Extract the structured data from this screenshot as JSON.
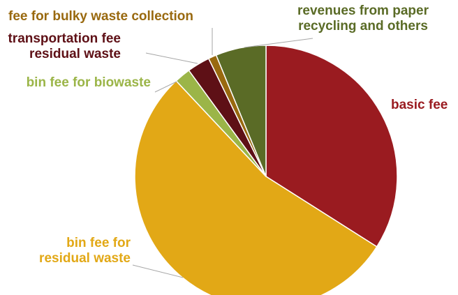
{
  "chart_data": {
    "type": "pie",
    "title": "",
    "slices": [
      {
        "label_lines": [
          "basic fee"
        ],
        "value": 34.0,
        "color": "#9a1b20"
      },
      {
        "label_lines": [
          "bin fee for",
          "residual waste"
        ],
        "value": 54.0,
        "color": "#e2a816"
      },
      {
        "label_lines": [
          "bin fee for biowaste"
        ],
        "value": 2.0,
        "color": "#9bb548"
      },
      {
        "label_lines": [
          "transportation fee",
          "residual waste"
        ],
        "value": 2.8,
        "color": "#5e1016"
      },
      {
        "label_lines": [
          "fee for bulky waste collection"
        ],
        "value": 1.0,
        "color": "#99690f"
      },
      {
        "label_lines": [
          "revenues from paper",
          "recycling and others"
        ],
        "value": 6.2,
        "color": "#5a6b26"
      }
    ],
    "start_angle_deg": 0,
    "direction": "clockwise",
    "legend": "none",
    "label_style": "outside labels with leader lines"
  }
}
